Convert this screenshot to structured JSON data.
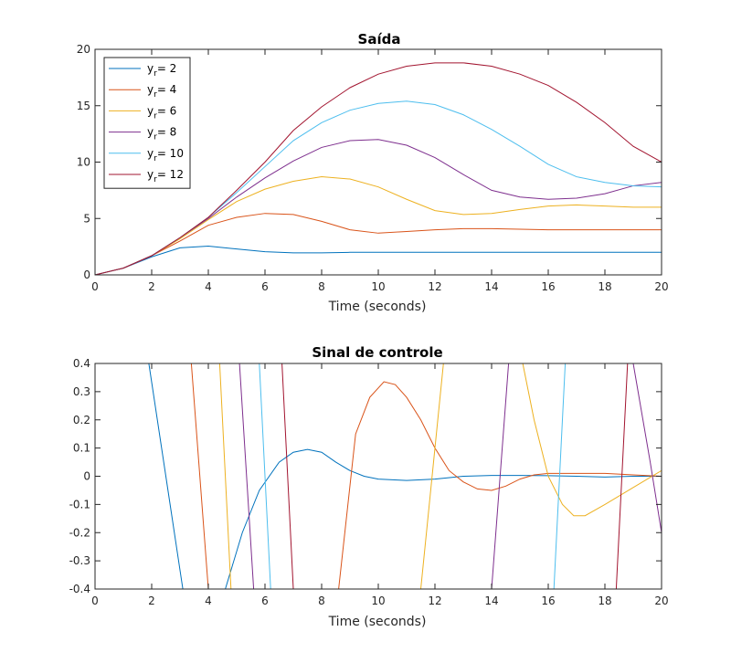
{
  "colors": {
    "axis": "#262626",
    "background": "#ffffff",
    "series": [
      "#0072BD",
      "#D95319",
      "#EDB120",
      "#7E2F8E",
      "#4DBEEE",
      "#A2142F"
    ]
  },
  "chart_data": [
    {
      "type": "line",
      "title": "Saída",
      "xlabel": "Time (seconds)",
      "ylabel": "",
      "xlim": [
        0,
        20
      ],
      "ylim": [
        0,
        20
      ],
      "xticks": [
        0,
        2,
        4,
        6,
        8,
        10,
        12,
        14,
        16,
        18,
        20
      ],
      "yticks": [
        0,
        5,
        10,
        15,
        20
      ],
      "grid": false,
      "legend_placement": "top-left",
      "x": [
        0,
        1,
        2,
        3,
        4,
        5,
        6,
        7,
        8,
        9,
        10,
        11,
        12,
        13,
        14,
        15,
        16,
        17,
        18,
        19,
        20
      ],
      "series": [
        {
          "name": "y_r= 2",
          "label_main": "y",
          "label_sub": "r",
          "label_rest": "= 2",
          "values": [
            0,
            0.6,
            1.6,
            2.4,
            2.55,
            2.3,
            2.05,
            1.95,
            1.95,
            2.0,
            2.0,
            2.0,
            2.0,
            2.0,
            2.0,
            2.0,
            2.0,
            2.0,
            2.0,
            2.0,
            2.0
          ]
        },
        {
          "name": "y_r= 4",
          "label_main": "y",
          "label_sub": "r",
          "label_rest": "= 4",
          "values": [
            0,
            0.6,
            1.7,
            3.0,
            4.4,
            5.1,
            5.45,
            5.35,
            4.75,
            4.0,
            3.7,
            3.85,
            4.0,
            4.1,
            4.1,
            4.05,
            4.0,
            4.0,
            4.0,
            4.0,
            4.0
          ]
        },
        {
          "name": "y_r= 6",
          "label_main": "y",
          "label_sub": "r",
          "label_rest": "= 6",
          "values": [
            0,
            0.6,
            1.7,
            3.2,
            4.9,
            6.5,
            7.6,
            8.3,
            8.7,
            8.5,
            7.8,
            6.7,
            5.7,
            5.35,
            5.45,
            5.8,
            6.1,
            6.2,
            6.1,
            6.0,
            6.0
          ]
        },
        {
          "name": "y_r= 8",
          "label_main": "y",
          "label_sub": "r",
          "label_rest": "= 8",
          "values": [
            0,
            0.6,
            1.7,
            3.3,
            5.0,
            6.9,
            8.6,
            10.1,
            11.3,
            11.9,
            12.0,
            11.5,
            10.4,
            8.9,
            7.5,
            6.9,
            6.7,
            6.8,
            7.2,
            7.9,
            8.2
          ]
        },
        {
          "name": "y_r= 10",
          "label_main": "y",
          "label_sub": "r",
          "label_rest": "= 10",
          "values": [
            0,
            0.6,
            1.7,
            3.3,
            5.1,
            7.3,
            9.6,
            11.9,
            13.5,
            14.6,
            15.2,
            15.4,
            15.1,
            14.2,
            12.9,
            11.4,
            9.8,
            8.7,
            8.2,
            7.9,
            7.8
          ]
        },
        {
          "name": "y_r= 12",
          "label_main": "y",
          "label_sub": "r",
          "label_rest": "= 12",
          "values": [
            0,
            0.6,
            1.7,
            3.3,
            5.1,
            7.5,
            10.0,
            12.8,
            14.9,
            16.6,
            17.8,
            18.5,
            18.8,
            18.8,
            18.5,
            17.8,
            16.8,
            15.3,
            13.5,
            11.4,
            10.0
          ]
        }
      ]
    },
    {
      "type": "line",
      "title": "Sinal de controle",
      "xlabel": "Time (seconds)",
      "ylabel": "",
      "xlim": [
        0,
        20
      ],
      "ylim": [
        -0.4,
        0.4
      ],
      "xticks": [
        0,
        2,
        4,
        6,
        8,
        10,
        12,
        14,
        16,
        18,
        20
      ],
      "yticks": [
        -0.4,
        -0.3,
        -0.2,
        -0.1,
        0,
        0.1,
        0.2,
        0.3,
        0.4
      ],
      "ytick_labels": [
        "-0.4",
        "-0.3",
        "-0.2",
        "-0.1",
        "0",
        "0.1",
        "0.2",
        "0.3",
        "0.4"
      ],
      "grid": false,
      "series": [
        {
          "name": "y_r= 2",
          "points": [
            [
              0,
              0.4
            ],
            [
              1.9,
              0.4
            ],
            [
              2.5,
              0
            ],
            [
              3.1,
              -0.4
            ],
            [
              4.6,
              -0.4
            ],
            [
              5.2,
              -0.2
            ],
            [
              5.8,
              -0.05
            ],
            [
              6.5,
              0.05
            ],
            [
              7,
              0.085
            ],
            [
              7.5,
              0.095
            ],
            [
              8,
              0.085
            ],
            [
              8.5,
              0.05
            ],
            [
              9,
              0.02
            ],
            [
              9.5,
              0
            ],
            [
              10,
              -0.01
            ],
            [
              11,
              -0.015
            ],
            [
              12,
              -0.01
            ],
            [
              13,
              0
            ],
            [
              14,
              0.003
            ],
            [
              15,
              0.003
            ],
            [
              16,
              0.002
            ],
            [
              17,
              0
            ],
            [
              18,
              -0.003
            ],
            [
              19,
              0
            ],
            [
              20,
              0
            ]
          ]
        },
        {
          "name": "y_r= 4",
          "points": [
            [
              0,
              0.4
            ],
            [
              3.4,
              0.4
            ],
            [
              4.0,
              -0.4
            ],
            [
              8.6,
              -0.4
            ],
            [
              9.2,
              0.15
            ],
            [
              9.7,
              0.28
            ],
            [
              10.2,
              0.335
            ],
            [
              10.6,
              0.325
            ],
            [
              11,
              0.28
            ],
            [
              11.5,
              0.2
            ],
            [
              12,
              0.1
            ],
            [
              12.5,
              0.02
            ],
            [
              13,
              -0.02
            ],
            [
              13.5,
              -0.045
            ],
            [
              14,
              -0.05
            ],
            [
              14.5,
              -0.035
            ],
            [
              15,
              -0.01
            ],
            [
              15.5,
              0.005
            ],
            [
              16,
              0.01
            ],
            [
              17,
              0.01
            ],
            [
              18,
              0.01
            ],
            [
              19,
              0.005
            ],
            [
              20,
              0
            ]
          ]
        },
        {
          "name": "y_r= 6",
          "points": [
            [
              0,
              0.4
            ],
            [
              4.4,
              0.4
            ],
            [
              4.8,
              -0.4
            ],
            [
              11.5,
              -0.4
            ],
            [
              12.3,
              0.4
            ],
            [
              15.1,
              0.4
            ],
            [
              15.5,
              0.2
            ],
            [
              16,
              0
            ],
            [
              16.5,
              -0.1
            ],
            [
              16.9,
              -0.14
            ],
            [
              17.3,
              -0.14
            ],
            [
              18,
              -0.1
            ],
            [
              19,
              -0.04
            ],
            [
              20,
              0.02
            ]
          ]
        },
        {
          "name": "y_r= 8",
          "points": [
            [
              0,
              0.4
            ],
            [
              5.1,
              0.4
            ],
            [
              5.6,
              -0.4
            ],
            [
              14.0,
              -0.4
            ],
            [
              14.6,
              0.4
            ],
            [
              19.0,
              0.4
            ],
            [
              19.6,
              0.05
            ],
            [
              20,
              -0.2
            ]
          ]
        },
        {
          "name": "y_r= 10",
          "points": [
            [
              0,
              0.4
            ],
            [
              5.8,
              0.4
            ],
            [
              6.2,
              -0.4
            ],
            [
              16.2,
              -0.4
            ],
            [
              16.6,
              0.4
            ],
            [
              20,
              0.4
            ]
          ]
        },
        {
          "name": "y_r= 12",
          "points": [
            [
              0,
              0.4
            ],
            [
              6.6,
              0.4
            ],
            [
              7.0,
              -0.4
            ],
            [
              18.4,
              -0.4
            ],
            [
              18.8,
              0.4
            ],
            [
              20,
              0.4
            ]
          ]
        }
      ]
    }
  ]
}
